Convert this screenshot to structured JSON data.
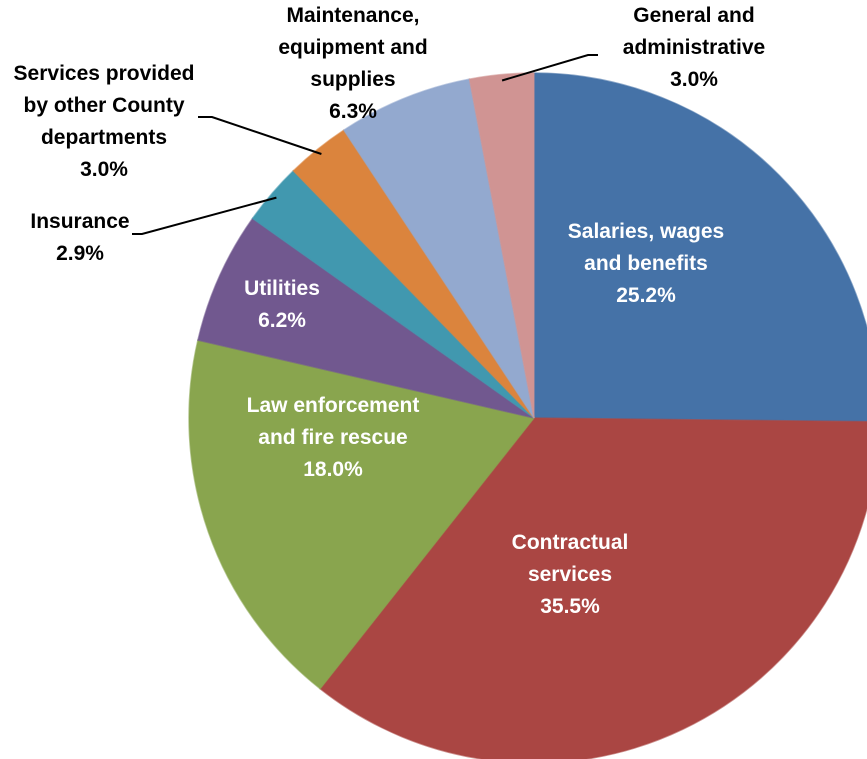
{
  "chart_data": {
    "type": "pie",
    "start_angle_deg": 0,
    "direction": "clockwise",
    "slices": [
      {
        "label_lines": [
          "Salaries, wages",
          "and benefits"
        ],
        "percent_label": "25.2%",
        "value": 25.2,
        "color": "#4572A7",
        "label_color": "#ffffff",
        "label_style": "inside"
      },
      {
        "label_lines": [
          "Contractual",
          "services"
        ],
        "percent_label": "35.5%",
        "value": 35.5,
        "color": "#AA4643",
        "label_color": "#ffffff",
        "label_style": "inside"
      },
      {
        "label_lines": [
          "Law enforcement",
          "and fire rescue"
        ],
        "percent_label": "18.0%",
        "value": 18.0,
        "color": "#89A54E",
        "label_color": "#ffffff",
        "label_style": "inside"
      },
      {
        "label_lines": [
          "Utilities"
        ],
        "percent_label": "6.2%",
        "value": 6.2,
        "color": "#71588F",
        "label_color": "#ffffff",
        "label_style": "inside"
      },
      {
        "label_lines": [
          "Insurance"
        ],
        "percent_label": "2.9%",
        "value": 2.9,
        "color": "#4198AF",
        "label_color": "#000000",
        "label_style": "callout"
      },
      {
        "label_lines": [
          "Services provided",
          "by other County",
          "departments"
        ],
        "percent_label": "3.0%",
        "value": 3.0,
        "color": "#DB843D",
        "label_color": "#000000",
        "label_style": "callout"
      },
      {
        "label_lines": [
          "Maintenance,",
          "equipment and",
          "supplies"
        ],
        "percent_label": "6.3%",
        "value": 6.3,
        "color": "#93A9CF",
        "label_color": "#000000",
        "label_style": "outside"
      },
      {
        "label_lines": [
          "General and",
          "administrative"
        ],
        "percent_label": "3.0%",
        "value": 3.0,
        "color": "#D09493",
        "label_color": "#000000",
        "label_style": "callout"
      }
    ]
  }
}
